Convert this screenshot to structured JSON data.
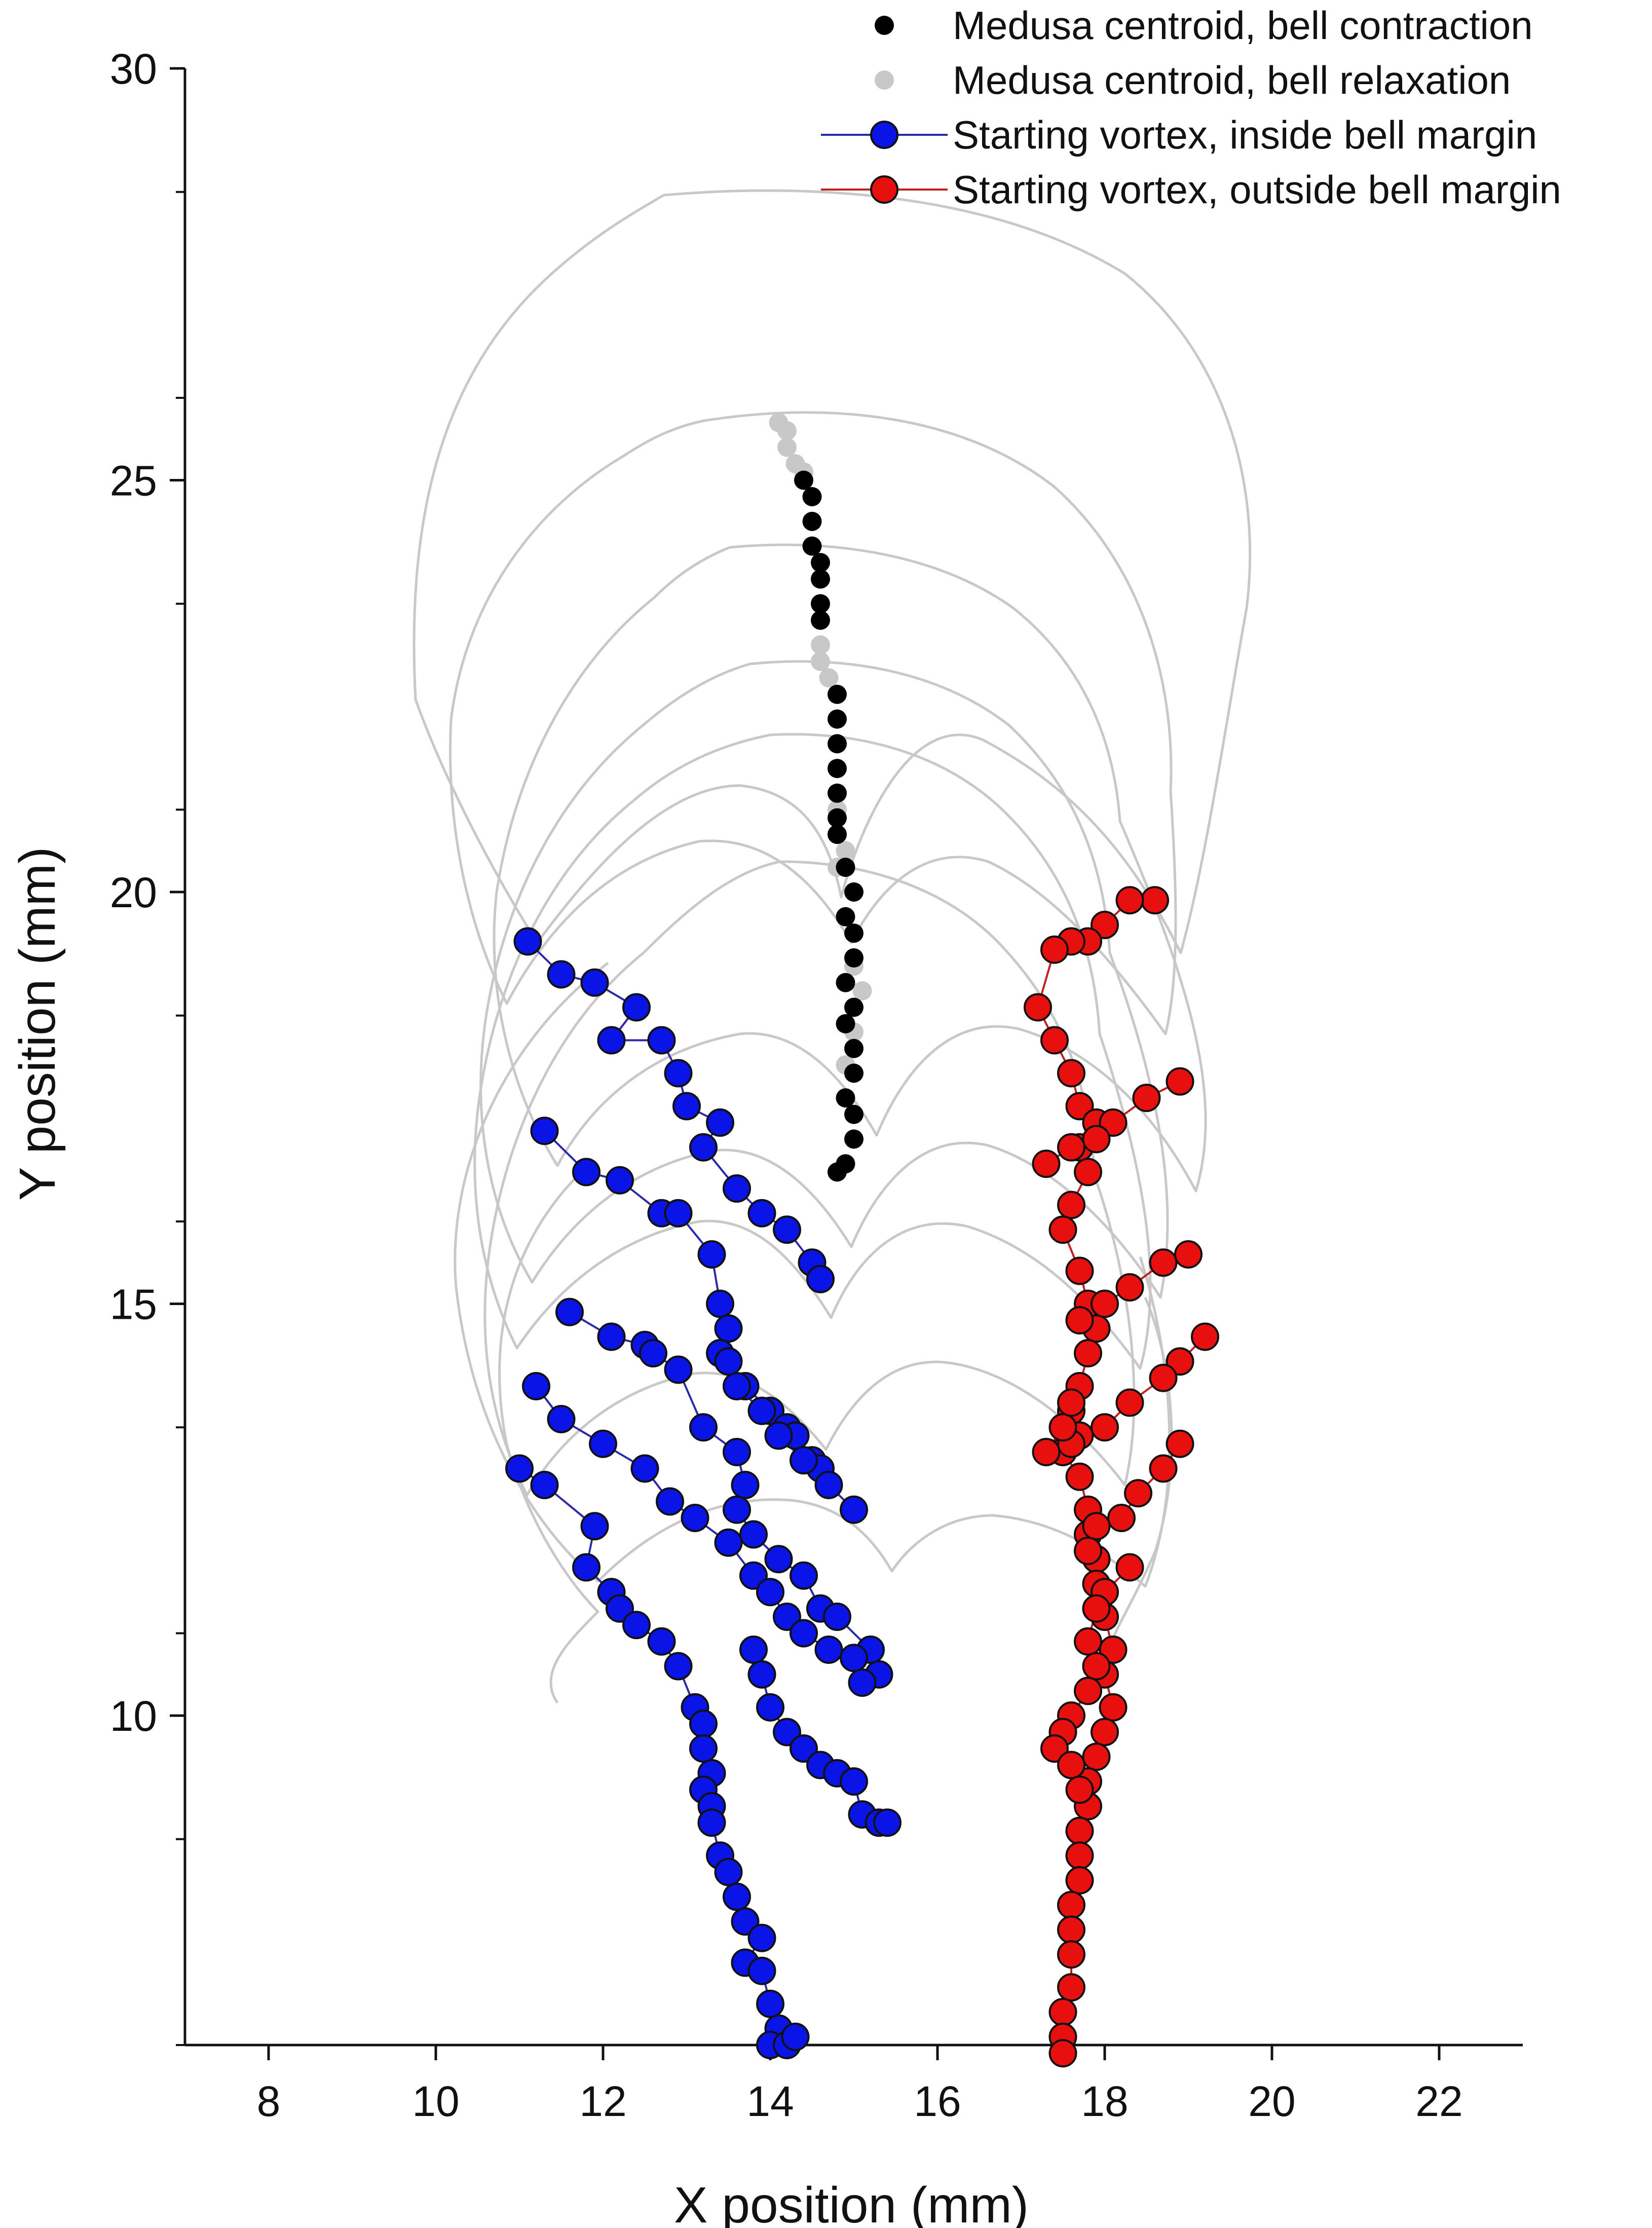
{
  "chart_data": {
    "type": "scatter",
    "xlabel": "X position (mm)",
    "ylabel": "Y position (mm)",
    "xlim": [
      7,
      23
    ],
    "ylim": [
      6,
      30
    ],
    "xticks": [
      8,
      10,
      12,
      14,
      16,
      18,
      20,
      22
    ],
    "yticks": [
      10,
      15,
      20,
      25,
      30
    ],
    "grid": false,
    "legend_position": "top-right",
    "colors": {
      "contraction": "#000000",
      "relaxation": "#c8c8c8",
      "inside": "#0a14e6",
      "inside_line": "#2a2aa8",
      "outside": "#e80f0f",
      "outside_line": "#c02020",
      "outline": "#c8c8c8"
    },
    "series": [
      {
        "key": "contraction",
        "name": "Medusa centroid, bell contraction",
        "style": "points",
        "points": [
          [
            14.8,
            16.6
          ],
          [
            14.9,
            16.7
          ],
          [
            15.0,
            17.0
          ],
          [
            15.0,
            17.3
          ],
          [
            14.9,
            17.5
          ],
          [
            15.0,
            17.8
          ],
          [
            15.0,
            18.1
          ],
          [
            14.9,
            18.4
          ],
          [
            15.0,
            18.6
          ],
          [
            14.9,
            18.9
          ],
          [
            15.0,
            19.2
          ],
          [
            15.0,
            19.5
          ],
          [
            14.9,
            19.7
          ],
          [
            15.0,
            20.0
          ],
          [
            14.9,
            20.3
          ],
          [
            14.8,
            20.7
          ],
          [
            14.8,
            20.9
          ],
          [
            14.8,
            21.2
          ],
          [
            14.8,
            21.5
          ],
          [
            14.8,
            21.8
          ],
          [
            14.8,
            22.1
          ],
          [
            14.8,
            22.4
          ],
          [
            14.6,
            23.3
          ],
          [
            14.6,
            23.5
          ],
          [
            14.6,
            23.8
          ],
          [
            14.6,
            24.0
          ],
          [
            14.5,
            24.2
          ],
          [
            14.5,
            24.5
          ],
          [
            14.5,
            24.8
          ],
          [
            14.4,
            25.0
          ]
        ]
      },
      {
        "key": "relaxation",
        "name": "Medusa centroid, bell relaxation",
        "style": "points",
        "points": [
          [
            14.9,
            17.9
          ],
          [
            15.0,
            18.3
          ],
          [
            15.1,
            18.8
          ],
          [
            15.0,
            19.1
          ],
          [
            14.8,
            20.3
          ],
          [
            14.9,
            20.5
          ],
          [
            14.8,
            21.0
          ],
          [
            14.7,
            22.6
          ],
          [
            14.6,
            22.8
          ],
          [
            14.6,
            23.0
          ],
          [
            14.4,
            25.1
          ],
          [
            14.3,
            25.2
          ],
          [
            14.2,
            25.4
          ],
          [
            14.2,
            25.6
          ],
          [
            14.1,
            25.7
          ]
        ]
      },
      {
        "key": "inside",
        "name": "Starting vortex, inside bell margin",
        "style": "paths",
        "paths": [
          [
            [
              11.1,
              19.4
            ],
            [
              11.5,
              19.0
            ],
            [
              11.9,
              18.9
            ],
            [
              12.4,
              18.6
            ],
            [
              12.1,
              18.2
            ],
            [
              12.7,
              18.2
            ],
            [
              12.9,
              17.8
            ],
            [
              13.0,
              17.4
            ],
            [
              13.4,
              17.2
            ],
            [
              13.2,
              16.9
            ],
            [
              13.6,
              16.4
            ],
            [
              13.9,
              16.1
            ],
            [
              14.2,
              15.9
            ],
            [
              14.5,
              15.5
            ],
            [
              14.6,
              15.3
            ]
          ],
          [
            [
              11.3,
              17.1
            ],
            [
              11.8,
              16.6
            ],
            [
              12.2,
              16.5
            ],
            [
              12.7,
              16.1
            ],
            [
              12.9,
              16.1
            ],
            [
              13.3,
              15.6
            ],
            [
              13.4,
              15.0
            ],
            [
              13.5,
              14.7
            ],
            [
              13.4,
              14.4
            ],
            [
              13.7,
              14.0
            ],
            [
              14.0,
              13.7
            ],
            [
              14.2,
              13.5
            ],
            [
              14.3,
              13.4
            ],
            [
              14.5,
              13.1
            ],
            [
              14.6,
              13.0
            ]
          ],
          [
            [
              11.6,
              14.9
            ],
            [
              12.1,
              14.6
            ],
            [
              12.5,
              14.5
            ],
            [
              12.6,
              14.4
            ],
            [
              12.9,
              14.2
            ],
            [
              13.2,
              13.5
            ],
            [
              13.6,
              13.2
            ],
            [
              13.7,
              12.8
            ],
            [
              13.6,
              12.5
            ],
            [
              13.8,
              12.2
            ],
            [
              14.1,
              11.9
            ],
            [
              14.4,
              11.7
            ],
            [
              14.6,
              11.3
            ],
            [
              14.8,
              11.2
            ],
            [
              15.2,
              10.8
            ],
            [
              15.3,
              10.5
            ]
          ],
          [
            [
              11.2,
              14.0
            ],
            [
              11.5,
              13.6
            ],
            [
              12.0,
              13.3
            ],
            [
              12.5,
              13.0
            ],
            [
              12.8,
              12.6
            ],
            [
              13.1,
              12.4
            ],
            [
              13.5,
              12.1
            ],
            [
              13.8,
              11.7
            ],
            [
              14.0,
              11.5
            ],
            [
              14.2,
              11.2
            ],
            [
              14.4,
              11.0
            ],
            [
              14.7,
              10.8
            ],
            [
              15.0,
              10.7
            ],
            [
              15.1,
              10.4
            ]
          ],
          [
            [
              11.0,
              13.0
            ],
            [
              11.3,
              12.8
            ],
            [
              11.9,
              12.3
            ],
            [
              11.8,
              11.8
            ],
            [
              12.1,
              11.5
            ],
            [
              12.2,
              11.3
            ],
            [
              12.4,
              11.1
            ],
            [
              12.7,
              10.9
            ],
            [
              12.9,
              10.6
            ],
            [
              13.1,
              10.1
            ],
            [
              13.2,
              9.9
            ],
            [
              13.2,
              9.6
            ],
            [
              13.3,
              9.3
            ],
            [
              13.2,
              9.1
            ],
            [
              13.3,
              8.9
            ],
            [
              13.3,
              8.7
            ],
            [
              13.4,
              8.3
            ],
            [
              13.5,
              8.1
            ],
            [
              13.6,
              7.8
            ],
            [
              13.7,
              7.5
            ],
            [
              13.9,
              7.3
            ],
            [
              13.7,
              7.0
            ],
            [
              13.9,
              6.9
            ],
            [
              14.0,
              6.5
            ],
            [
              14.1,
              6.2
            ],
            [
              14.0,
              6.0
            ]
          ],
          [
            [
              14.2,
              6.0
            ],
            [
              14.3,
              6.1
            ]
          ],
          [
            [
              15.0,
              12.5
            ],
            [
              14.7,
              12.8
            ],
            [
              14.4,
              13.1
            ],
            [
              14.1,
              13.4
            ],
            [
              13.9,
              13.7
            ],
            [
              13.6,
              14.0
            ],
            [
              13.5,
              14.3
            ]
          ],
          [
            [
              13.8,
              10.8
            ],
            [
              13.9,
              10.5
            ],
            [
              14.0,
              10.1
            ],
            [
              14.2,
              9.8
            ],
            [
              14.4,
              9.6
            ],
            [
              14.6,
              9.4
            ],
            [
              14.8,
              9.3
            ],
            [
              15.0,
              9.2
            ],
            [
              15.1,
              8.8
            ],
            [
              15.3,
              8.7
            ],
            [
              15.4,
              8.7
            ]
          ]
        ]
      },
      {
        "key": "outside",
        "name": "Starting vortex, outside bell margin",
        "style": "paths",
        "paths": [
          [
            [
              18.6,
              19.9
            ],
            [
              18.3,
              19.9
            ],
            [
              18.0,
              19.6
            ],
            [
              17.8,
              19.4
            ],
            [
              17.6,
              19.4
            ],
            [
              17.4,
              19.3
            ],
            [
              17.2,
              18.6
            ],
            [
              17.4,
              18.2
            ],
            [
              17.6,
              17.8
            ],
            [
              17.7,
              17.4
            ],
            [
              17.9,
              17.2
            ],
            [
              17.7,
              16.9
            ],
            [
              17.8,
              16.6
            ],
            [
              17.6,
              16.2
            ],
            [
              17.5,
              15.9
            ],
            [
              17.7,
              15.4
            ],
            [
              17.8,
              15.0
            ],
            [
              17.9,
              14.7
            ],
            [
              17.8,
              14.4
            ],
            [
              17.7,
              14.0
            ],
            [
              17.6,
              13.7
            ],
            [
              17.7,
              13.4
            ],
            [
              17.5,
              13.2
            ],
            [
              17.7,
              12.9
            ],
            [
              17.8,
              12.5
            ],
            [
              17.8,
              12.2
            ],
            [
              17.9,
              11.9
            ],
            [
              17.9,
              11.6
            ],
            [
              18.0,
              11.2
            ],
            [
              18.1,
              10.8
            ],
            [
              18.0,
              10.5
            ],
            [
              18.1,
              10.1
            ],
            [
              18.0,
              9.8
            ],
            [
              17.9,
              9.5
            ],
            [
              17.8,
              9.2
            ],
            [
              17.8,
              8.9
            ],
            [
              17.7,
              8.6
            ],
            [
              17.7,
              8.3
            ],
            [
              17.7,
              8.0
            ],
            [
              17.6,
              7.7
            ],
            [
              17.6,
              7.4
            ],
            [
              17.6,
              7.1
            ],
            [
              17.6,
              6.7
            ],
            [
              17.5,
              6.4
            ],
            [
              17.5,
              6.1
            ],
            [
              17.5,
              5.9
            ]
          ],
          [
            [
              18.9,
              17.7
            ],
            [
              18.5,
              17.5
            ],
            [
              18.1,
              17.2
            ],
            [
              17.9,
              17.0
            ],
            [
              17.6,
              16.9
            ],
            [
              17.3,
              16.7
            ]
          ],
          [
            [
              19.0,
              15.6
            ],
            [
              18.7,
              15.5
            ],
            [
              18.3,
              15.2
            ],
            [
              18.0,
              15.0
            ],
            [
              17.7,
              14.8
            ]
          ],
          [
            [
              19.2,
              14.6
            ],
            [
              18.9,
              14.3
            ],
            [
              18.7,
              14.1
            ],
            [
              18.3,
              13.8
            ],
            [
              18.0,
              13.5
            ],
            [
              17.6,
              13.3
            ]
          ],
          [
            [
              18.9,
              13.3
            ],
            [
              18.7,
              13.0
            ],
            [
              18.4,
              12.7
            ],
            [
              18.2,
              12.4
            ],
            [
              17.9,
              12.3
            ],
            [
              17.8,
              12.0
            ]
          ],
          [
            [
              17.3,
              13.2
            ],
            [
              17.5,
              13.5
            ],
            [
              17.6,
              13.8
            ]
          ],
          [
            [
              18.3,
              11.8
            ],
            [
              18.0,
              11.5
            ],
            [
              17.9,
              11.3
            ],
            [
              17.8,
              10.9
            ],
            [
              17.9,
              10.6
            ],
            [
              17.8,
              10.3
            ],
            [
              17.6,
              10.0
            ],
            [
              17.5,
              9.8
            ],
            [
              17.4,
              9.6
            ],
            [
              17.6,
              9.4
            ],
            [
              17.7,
              9.1
            ]
          ]
        ]
      }
    ]
  }
}
